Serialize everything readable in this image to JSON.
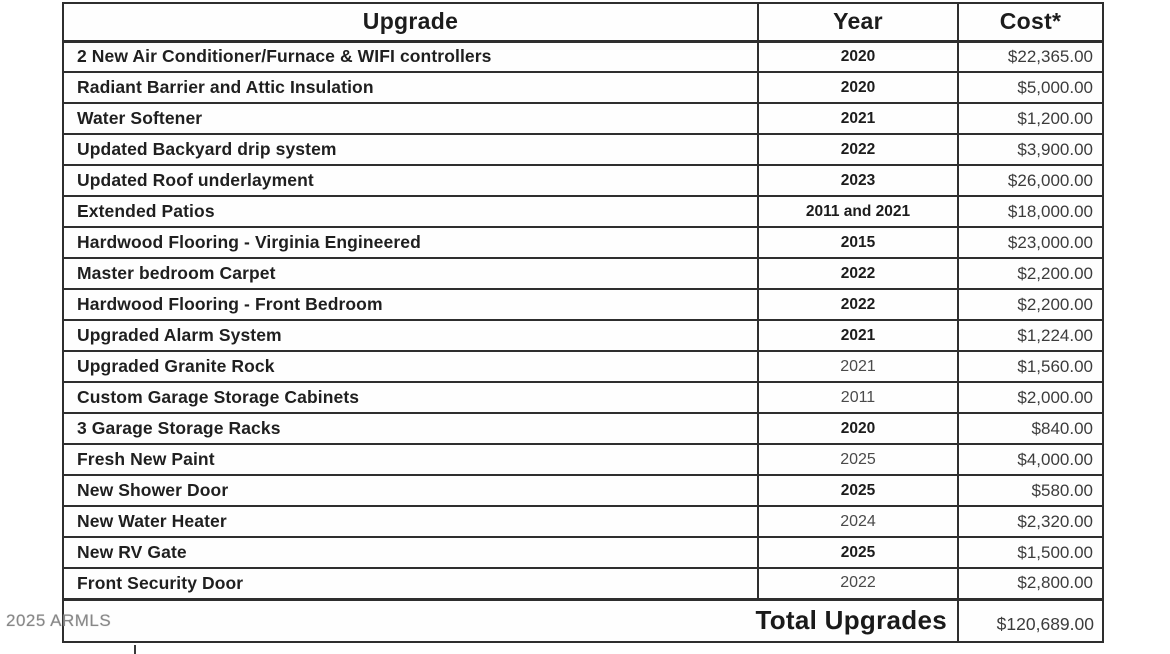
{
  "table": {
    "headers": [
      "Upgrade",
      "Year",
      "Cost*"
    ],
    "rows": [
      {
        "upgrade": "2 New Air Conditioner/Furnace & WIFI controllers",
        "year": "2020",
        "year_bold": true,
        "cost": "$22,365.00"
      },
      {
        "upgrade": "Radiant Barrier and Attic Insulation",
        "year": "2020",
        "year_bold": true,
        "cost": "$5,000.00"
      },
      {
        "upgrade": "Water Softener",
        "year": "2021",
        "year_bold": true,
        "cost": "$1,200.00"
      },
      {
        "upgrade": "Updated Backyard drip system",
        "year": "2022",
        "year_bold": true,
        "cost": "$3,900.00"
      },
      {
        "upgrade": "Updated Roof underlayment",
        "year": "2023",
        "year_bold": true,
        "cost": "$26,000.00"
      },
      {
        "upgrade": "Extended Patios",
        "year": "2011 and 2021",
        "year_bold": true,
        "cost": "$18,000.00"
      },
      {
        "upgrade": "Hardwood Flooring - Virginia Engineered",
        "year": "2015",
        "year_bold": true,
        "cost": "$23,000.00"
      },
      {
        "upgrade": "Master bedroom Carpet",
        "year": "2022",
        "year_bold": true,
        "cost": "$2,200.00"
      },
      {
        "upgrade": "Hardwood Flooring - Front Bedroom",
        "year": "2022",
        "year_bold": true,
        "cost": "$2,200.00"
      },
      {
        "upgrade": "Upgraded Alarm System",
        "year": "2021",
        "year_bold": true,
        "cost": "$1,224.00"
      },
      {
        "upgrade": "Upgraded Granite Rock",
        "year": "2021",
        "year_bold": false,
        "cost": "$1,560.00"
      },
      {
        "upgrade": "Custom Garage Storage Cabinets",
        "year": "2011",
        "year_bold": false,
        "cost": "$2,000.00"
      },
      {
        "upgrade": "3 Garage Storage Racks",
        "year": "2020",
        "year_bold": true,
        "cost": "$840.00"
      },
      {
        "upgrade": "Fresh New Paint",
        "year": "2025",
        "year_bold": false,
        "cost": "$4,000.00"
      },
      {
        "upgrade": "New Shower Door",
        "year": "2025",
        "year_bold": true,
        "cost": "$580.00"
      },
      {
        "upgrade": "New Water Heater",
        "year": "2024",
        "year_bold": false,
        "cost": "$2,320.00"
      },
      {
        "upgrade": "New RV Gate",
        "year": "2025",
        "year_bold": true,
        "cost": "$1,500.00"
      },
      {
        "upgrade": "Front Security Door",
        "year": "2022",
        "year_bold": false,
        "cost": "$2,800.00"
      }
    ],
    "total_label": "Total Upgrades",
    "total_cost": "$120,689.00"
  },
  "watermark": "2025 ARMLS",
  "colors": {
    "border": "#2e2e2e",
    "text_bold": "#1c1c1c",
    "text_cost": "#3c3c3c",
    "watermark": "#878787"
  }
}
